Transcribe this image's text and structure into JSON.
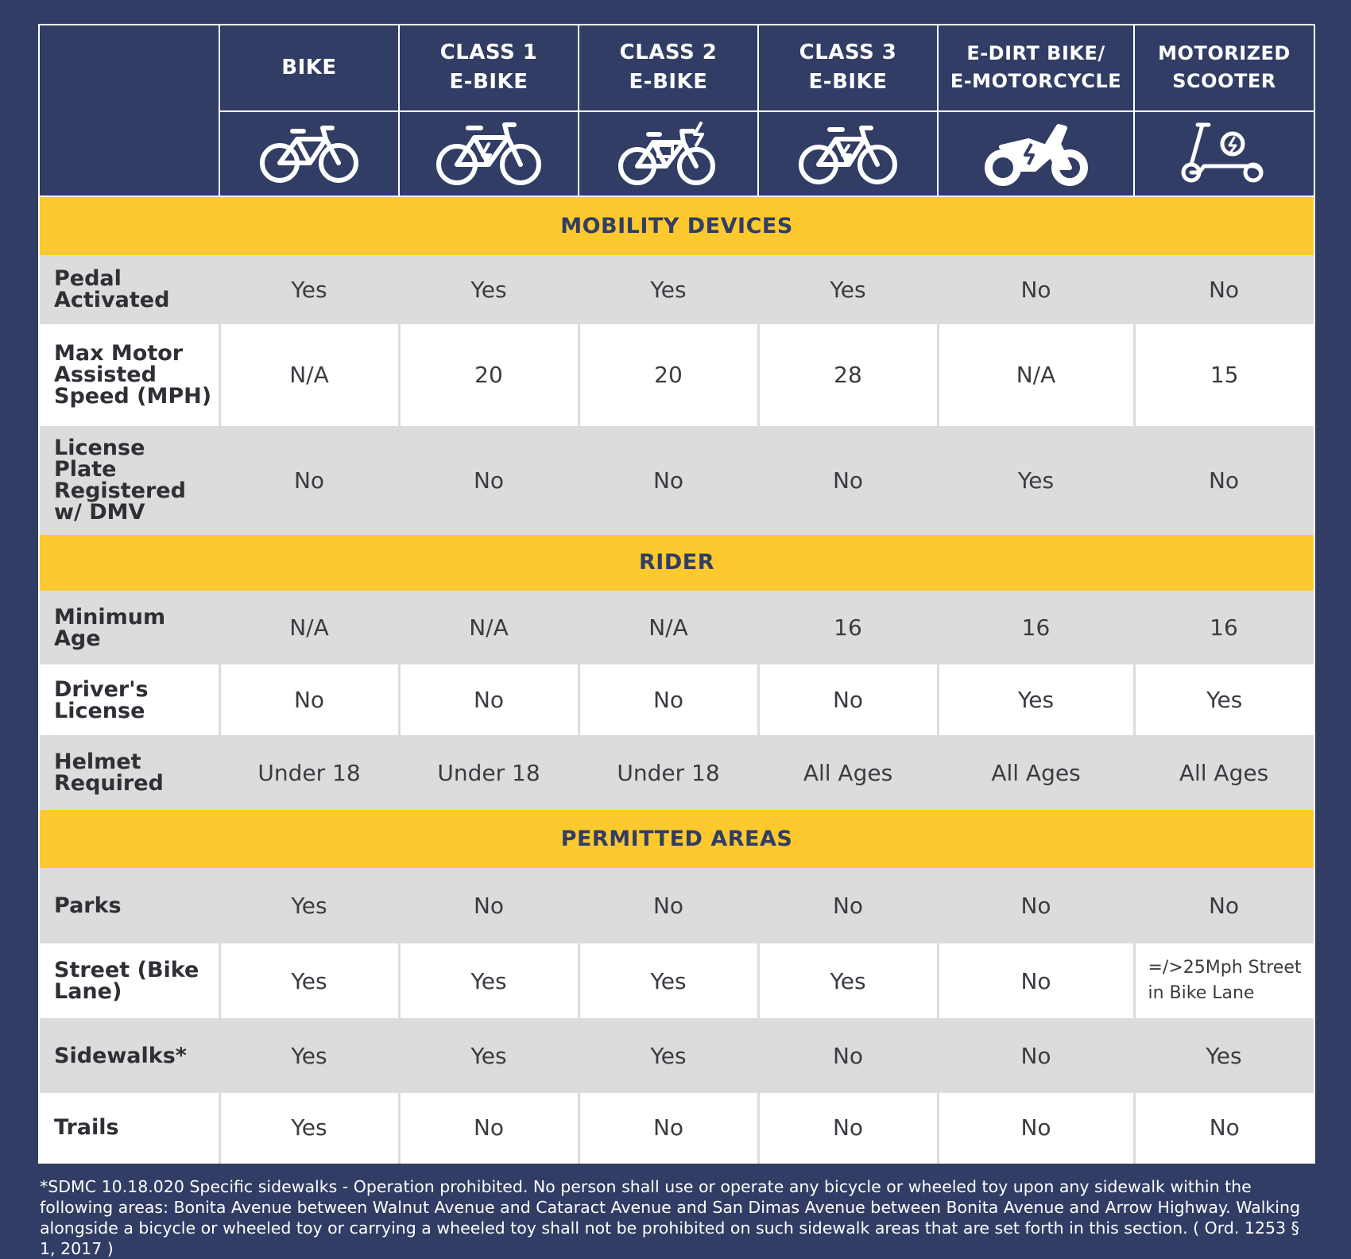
{
  "columns": [
    {
      "line1": "BIKE",
      "line2": "",
      "icon": "bicycle-icon"
    },
    {
      "line1": "CLASS 1",
      "line2": "E-BIKE",
      "icon": "class1-ebike-icon"
    },
    {
      "line1": "CLASS 2",
      "line2": "E-BIKE",
      "icon": "class2-ebike-icon"
    },
    {
      "line1": "CLASS 3",
      "line2": "E-BIKE",
      "icon": "class3-ebike-icon"
    },
    {
      "line1": "E-DIRT BIKE/",
      "line2": "E-MOTORCYCLE",
      "icon": "dirt-bike-icon"
    },
    {
      "line1": "MOTORIZED",
      "line2": "SCOOTER",
      "icon": "scooter-icon"
    }
  ],
  "sections": [
    {
      "title": "MOBILITY DEVICES",
      "rows": [
        {
          "label": "Pedal Activated",
          "values": [
            "Yes",
            "Yes",
            "Yes",
            "Yes",
            "No",
            "No"
          ]
        },
        {
          "label": "Max Motor Assisted Speed (MPH)",
          "values": [
            "N/A",
            "20",
            "20",
            "28",
            "N/A",
            "15"
          ]
        },
        {
          "label": "License Plate Registered w/ DMV",
          "values": [
            "No",
            "No",
            "No",
            "No",
            "Yes",
            "No"
          ]
        }
      ]
    },
    {
      "title": "RIDER",
      "rows": [
        {
          "label": "Minimum Age",
          "values": [
            "N/A",
            "N/A",
            "N/A",
            "16",
            "16",
            "16"
          ]
        },
        {
          "label": "Driver's License",
          "values": [
            "No",
            "No",
            "No",
            "No",
            "Yes",
            "Yes"
          ]
        },
        {
          "label": "Helmet Required",
          "values": [
            "Under 18",
            "Under 18",
            "Under 18",
            "All Ages",
            "All Ages",
            "All Ages"
          ]
        }
      ]
    },
    {
      "title": "PERMITTED AREAS",
      "rows": [
        {
          "label": "Parks",
          "values": [
            "Yes",
            "No",
            "No",
            "No",
            "No",
            "No"
          ]
        },
        {
          "label": "Street (Bike Lane)",
          "values": [
            "Yes",
            "Yes",
            "Yes",
            "Yes",
            "No",
            "=/>25Mph Street in Bike Lane"
          ]
        },
        {
          "label": "Sidewalks*",
          "values": [
            "Yes",
            "Yes",
            "Yes",
            "No",
            "No",
            "Yes"
          ]
        },
        {
          "label": "Trails",
          "values": [
            "Yes",
            "No",
            "No",
            "No",
            "No",
            "No"
          ]
        }
      ]
    }
  ],
  "footnote": "*SDMC 10.18.020 Specific sidewalks - Operation prohibited. No person shall use or operate any bicycle or wheeled toy upon any sidewalk within the following areas: Bonita Avenue between Walnut Avenue and Cataract Avenue and San Dimas Avenue between Bonita Avenue and Arrow Highway. Walking alongside a bicycle or wheeled toy or carrying a wheeled toy shall not be prohibited on such sidewalk areas that are set forth in this section. ( Ord. 1253 § 1, 2017 )",
  "colors": {
    "navy": "#313d64",
    "yellow": "#fdc92f",
    "grey": "#dcdcdc",
    "white": "#ffffff"
  }
}
